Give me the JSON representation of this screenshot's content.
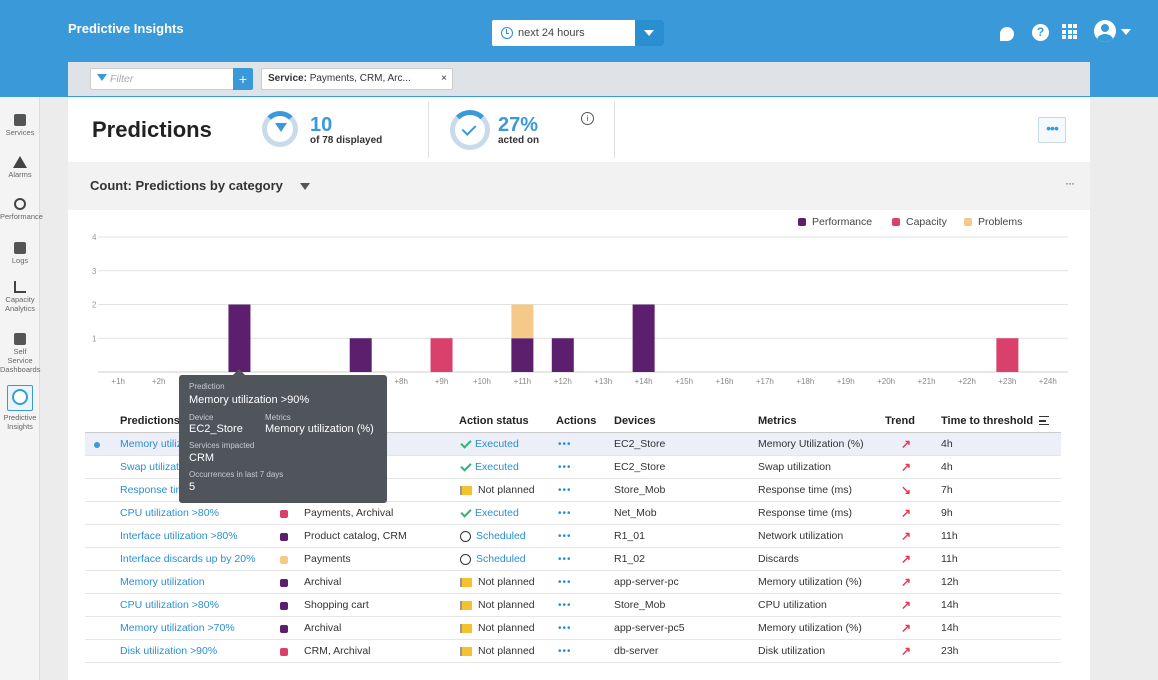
{
  "app": {
    "title": "Predictive Insights"
  },
  "time_range": {
    "label": "next 24 hours"
  },
  "filter": {
    "placeholder": "Filter",
    "add_label": "+",
    "chip_key": "Service:",
    "chip_value": "Payments, CRM, Arc...",
    "chip_close": "×"
  },
  "sidebar": {
    "items": [
      {
        "label": "Services",
        "icon": "services-icon"
      },
      {
        "label": "Alarms",
        "icon": "alarm-icon"
      },
      {
        "label": "Performance",
        "icon": "performance-icon"
      },
      {
        "label": "Logs",
        "icon": "logs-icon"
      },
      {
        "label": "Capacity Analytics",
        "icon": "capacity-icon"
      },
      {
        "label": "Self Service Dashboards",
        "icon": "dashboard-icon"
      },
      {
        "label": "Predictive Insights",
        "icon": "predictive-icon"
      }
    ]
  },
  "summary": {
    "title": "Predictions",
    "displayed_count": "10",
    "displayed_sub": "of 78 displayed",
    "acted_pct": "27%",
    "acted_sub": "acted on",
    "more": "•••"
  },
  "chart_header": {
    "title": "Count: Predictions by category",
    "more": "···"
  },
  "colors": {
    "performance": "#5b1f6e",
    "capacity": "#d9406b",
    "problems": "#f5c98a",
    "accent": "#3a9ad9"
  },
  "chart_data": {
    "type": "bar",
    "stacked": true,
    "categories": [
      "+1h",
      "+2h",
      "+3h",
      "+4h",
      "+5h",
      "+6h",
      "+7h",
      "+8h",
      "+9h",
      "+10h",
      "+11h",
      "+12h",
      "+13h",
      "+14h",
      "+15h",
      "+16h",
      "+17h",
      "+18h",
      "+19h",
      "+20h",
      "+21h",
      "+22h",
      "+23h",
      "+24h"
    ],
    "series": [
      {
        "name": "Performance",
        "values": [
          0,
          0,
          0,
          2,
          0,
          0,
          1,
          0,
          0,
          0,
          1,
          1,
          0,
          2,
          0,
          0,
          0,
          0,
          0,
          0,
          0,
          0,
          0,
          0
        ]
      },
      {
        "name": "Capacity",
        "values": [
          0,
          0,
          0,
          0,
          0,
          0,
          0,
          0,
          1,
          0,
          0,
          0,
          0,
          0,
          0,
          0,
          0,
          0,
          0,
          0,
          0,
          0,
          1,
          0
        ]
      },
      {
        "name": "Problems",
        "values": [
          0,
          0,
          0,
          0,
          0,
          0,
          0,
          0,
          0,
          0,
          1,
          0,
          0,
          0,
          0,
          0,
          0,
          0,
          0,
          0,
          0,
          0,
          0,
          0
        ]
      }
    ],
    "yticks": [
      "1",
      "2",
      "3",
      "4"
    ],
    "ylim": [
      0,
      4
    ],
    "legend_position": "top-right",
    "grid": true
  },
  "table": {
    "headers": {
      "predictions": "Predictions",
      "services": "d",
      "action_status": "Action status",
      "actions": "Actions",
      "devices": "Devices",
      "metrics": "Metrics",
      "trend": "Trend",
      "time": "Time to threshold"
    },
    "rows": [
      {
        "prediction": "Memory utiliz",
        "color": "",
        "services": "",
        "status": "Executed",
        "status_type": "executed",
        "actions": "•••",
        "device": "EC2_Store",
        "metric": "Memory Utilization (%)",
        "trend": "↗",
        "time": "4h"
      },
      {
        "prediction": "Swap utilizati",
        "color": "",
        "services": "",
        "status": "Executed",
        "status_type": "executed",
        "actions": "•••",
        "device": "EC2_Store",
        "metric": "Swap utilization",
        "trend": "↗",
        "time": "4h"
      },
      {
        "prediction": "Response tim",
        "color": "",
        "services": "",
        "status": "Not planned",
        "status_type": "notplanned",
        "actions": "•••",
        "device": "Store_Mob",
        "metric": "Response time (ms)",
        "trend": "↘",
        "time": "7h"
      },
      {
        "prediction": "CPU utilization >80%",
        "color": "#d9406b",
        "services": "Payments, Archival",
        "status": "Executed",
        "status_type": "executed",
        "actions": "•••",
        "device": "Net_Mob",
        "metric": "Response time (ms)",
        "trend": "↗",
        "time": "9h"
      },
      {
        "prediction": "Interface utilization >80%",
        "color": "#5b1f6e",
        "services": "Product catalog, CRM",
        "status": "Scheduled",
        "status_type": "scheduled",
        "actions": "•••",
        "device": "R1_01",
        "metric": "Network utilization",
        "trend": "↗",
        "time": "11h"
      },
      {
        "prediction": "Interface discards up by 20%",
        "color": "#f5c98a",
        "services": "Payments",
        "status": "Scheduled",
        "status_type": "scheduled",
        "actions": "•••",
        "device": "R1_02",
        "metric": "Discards",
        "trend": "↗",
        "time": "11h"
      },
      {
        "prediction": "Memory utilization",
        "color": "#5b1f6e",
        "services": "Archival",
        "status": "Not planned",
        "status_type": "notplanned",
        "actions": "•••",
        "device": "app-server-pc",
        "metric": "Memory utilization (%)",
        "trend": "↗",
        "time": "12h"
      },
      {
        "prediction": "CPU utilization >80%",
        "color": "#5b1f6e",
        "services": "Shopping cart",
        "status": "Not planned",
        "status_type": "notplanned",
        "actions": "•••",
        "device": "Store_Mob",
        "metric": "CPU utilization",
        "trend": "↗",
        "time": "14h"
      },
      {
        "prediction": "Memory utilization >70%",
        "color": "#5b1f6e",
        "services": "Archival",
        "status": "Not planned",
        "status_type": "notplanned",
        "actions": "•••",
        "device": "app-server-pc5",
        "metric": "Memory utilization (%)",
        "trend": "↗",
        "time": "14h"
      },
      {
        "prediction": "Disk utilization >90%",
        "color": "#d9406b",
        "services": "CRM, Archival",
        "status": "Not planned",
        "status_type": "notplanned",
        "actions": "•••",
        "device": "db-server",
        "metric": "Disk utilization",
        "trend": "↗",
        "time": "23h"
      }
    ]
  },
  "tooltip": {
    "prediction_label": "Prediction",
    "prediction_value": "Memory utilization >90%",
    "device_label": "Device",
    "device_value": "EC2_Store",
    "metrics_label": "Metrics",
    "metrics_value": "Memory utilization (%)",
    "services_label": "Services impacted",
    "services_value": "CRM",
    "occ_label": "Occurrences in last 7 days",
    "occ_value": "5"
  }
}
